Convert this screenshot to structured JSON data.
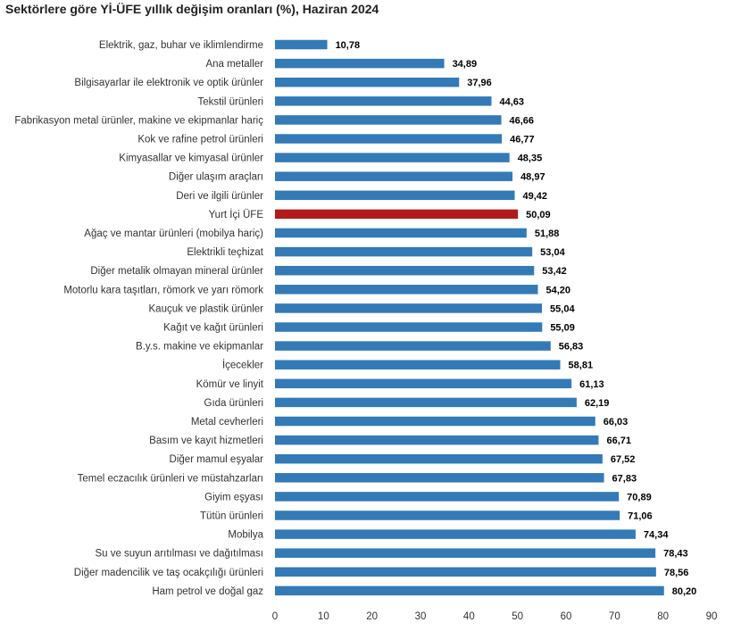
{
  "chart_data": {
    "type": "bar",
    "orientation": "horizontal",
    "title": "Sektörlere göre Yİ-ÜFE yıllık değişim oranları (%), Haziran 2024",
    "xlabel": "",
    "ylabel": "",
    "xlim": [
      0,
      90
    ],
    "xticks": [
      0,
      10,
      20,
      30,
      40,
      50,
      60,
      70,
      80,
      90
    ],
    "grid": false,
    "legend": "none",
    "bar_color": "#337ab7",
    "highlight_color": "#b01c1c",
    "highlight_category": "Yurt İçi ÜFE",
    "categories": [
      "Elektrik, gaz, buhar ve iklimlendirme",
      "Ana metaller",
      "Bilgisayarlar ile elektronik ve optik ürünler",
      "Tekstil ürünleri",
      "Fabrikasyon metal ürünler, makine ve ekipmanlar hariç",
      "Kok ve rafine petrol ürünleri",
      "Kimyasallar ve kimyasal ürünler",
      "Diğer ulaşım araçları",
      "Deri ve ilgili ürünler",
      "Yurt İçi ÜFE",
      "Ağaç ve mantar ürünleri (mobilya hariç)",
      "Elektrikli teçhizat",
      "Diğer metalik olmayan mineral ürünler",
      "Motorlu kara taşıtları, römork ve yarı römork",
      "Kauçuk ve plastik ürünler",
      "Kağıt ve kağıt ürünleri",
      "B.y.s. makine ve ekipmanlar",
      "İçecekler",
      "Kömür ve linyit",
      "Gıda ürünleri",
      "Metal cevherleri",
      "Basım ve kayıt hizmetleri",
      "Diğer mamul eşyalar",
      "Temel eczacılık ürünleri ve müstahzarları",
      "Giyim eşyası",
      "Tütün ürünleri",
      "Mobilya",
      "Su ve suyun arıtılması ve dağıtılması",
      "Diğer madencilik ve taş ocakçılığı ürünleri",
      "Ham petrol ve doğal gaz"
    ],
    "values": [
      10.78,
      34.89,
      37.96,
      44.63,
      46.66,
      46.77,
      48.35,
      48.97,
      49.42,
      50.09,
      51.88,
      53.04,
      53.42,
      54.2,
      55.04,
      55.09,
      56.83,
      58.81,
      61.13,
      62.19,
      66.03,
      66.71,
      67.52,
      67.83,
      70.89,
      71.06,
      74.34,
      78.43,
      78.56,
      80.2
    ],
    "value_labels": [
      "10,78",
      "34,89",
      "37,96",
      "44,63",
      "46,66",
      "46,77",
      "48,35",
      "48,97",
      "49,42",
      "50,09",
      "51,88",
      "53,04",
      "53,42",
      "54,20",
      "55,04",
      "55,09",
      "56,83",
      "58,81",
      "61,13",
      "62,19",
      "66,03",
      "66,71",
      "67,52",
      "67,83",
      "70,89",
      "71,06",
      "74,34",
      "78,43",
      "78,56",
      "80,20"
    ]
  }
}
